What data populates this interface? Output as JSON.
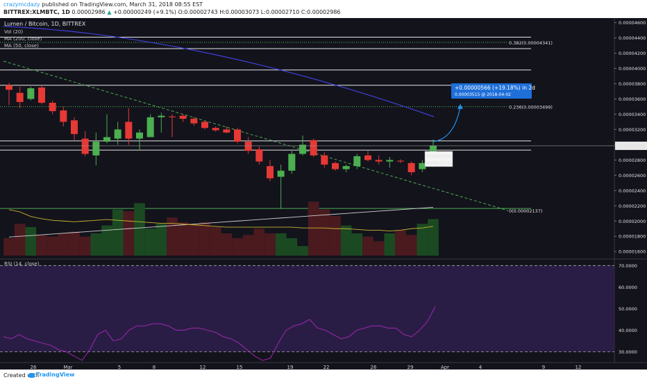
{
  "header": {
    "author": "crazymcdazy",
    "published_text": "published on TradingView.com, March 31, 2018 08:55 EST",
    "symbol": "BITTREX:XLMBTC, 1D",
    "price": "0.00002986",
    "change": "+0.00000249 (+9.1%)",
    "open": "O:0.00002743",
    "high": "H:0.00003073",
    "low": "L:0.00002710",
    "close": "C:0.00002986"
  },
  "legend": {
    "title": "Lumen / Bitcoin, 1D, BITTREX",
    "vol": "Vol (20)",
    "ma200": "MA (200, close)",
    "ma50": "MA (50, close)",
    "rsi": "RSI (14, close)"
  },
  "annotations": {
    "fib_382": "0.382(0.00004341)",
    "fib_236": "0.236(0.00003499)",
    "fib_0": "0(0.00002137)",
    "target_change": "+0.00000566 (+19.18%) in 2d",
    "target_detail": "0.00003515 @ 2018-04-02",
    "current_price_label": "0.00002986",
    "date_tooltip_price": "0.0000295",
    "date_tooltip_date": "2018-03-31"
  },
  "footer": {
    "created_with": "Created with",
    "brand": "TradingView"
  },
  "colors": {
    "background": "#13131c",
    "up": "#4caf50",
    "down": "#e53935",
    "fib": "#4caf50",
    "rsi_line": "#9c27b0",
    "rsi_fill": "#2a1d45",
    "ma200": "#d0d0d0",
    "ma50": "#c9b530",
    "blue_line": "#3f3fd9"
  },
  "chart_data": {
    "type": "candlestick",
    "price_axis": {
      "ticks": [
        "0.00004600",
        "0.00004400",
        "0.00004200",
        "0.00004000",
        "0.00003800",
        "0.00003600",
        "0.00003400",
        "0.00003200",
        "0.00003000",
        "0.00002800",
        "0.00002600",
        "0.00002400",
        "0.00002200",
        "0.00002000",
        "0.00001800",
        "0.00001600"
      ],
      "range": [
        1.52e-05,
        4.66e-05
      ]
    },
    "x_axis": {
      "ticks": [
        "26",
        "Mar",
        "5",
        "8",
        "12",
        "15",
        "19",
        "22",
        "26",
        "29",
        "Apr",
        "4",
        "9",
        "12"
      ]
    },
    "horizontal_levels": [
      4.41e-05,
      4.26e-05,
      3.98e-05,
      3.78e-05,
      3.05e-05,
      2.93e-05,
      2.165e-05
    ],
    "candles": [
      {
        "o": 3.78,
        "h": 3.81,
        "l": 3.52,
        "c": 3.72
      },
      {
        "o": 3.68,
        "h": 3.76,
        "l": 3.48,
        "c": 3.56
      },
      {
        "o": 3.6,
        "h": 3.76,
        "l": 3.58,
        "c": 3.74
      },
      {
        "o": 3.75,
        "h": 3.78,
        "l": 3.53,
        "c": 3.55
      },
      {
        "o": 3.55,
        "h": 3.58,
        "l": 3.4,
        "c": 3.44
      },
      {
        "o": 3.45,
        "h": 3.5,
        "l": 3.24,
        "c": 3.3
      },
      {
        "o": 3.32,
        "h": 3.36,
        "l": 3.06,
        "c": 3.14
      },
      {
        "o": 3.08,
        "h": 3.18,
        "l": 2.85,
        "c": 2.88
      },
      {
        "o": 2.86,
        "h": 3.16,
        "l": 2.73,
        "c": 3.04
      },
      {
        "o": 3.04,
        "h": 3.4,
        "l": 3.02,
        "c": 3.1
      },
      {
        "o": 3.08,
        "h": 3.3,
        "l": 3.0,
        "c": 3.2
      },
      {
        "o": 3.3,
        "h": 3.48,
        "l": 3.0,
        "c": 3.08
      },
      {
        "o": 3.08,
        "h": 3.2,
        "l": 2.92,
        "c": 3.16
      },
      {
        "o": 3.1,
        "h": 3.4,
        "l": 3.1,
        "c": 3.36
      },
      {
        "o": 3.36,
        "h": 3.42,
        "l": 3.16,
        "c": 3.38
      },
      {
        "o": 3.37,
        "h": 3.4,
        "l": 3.1,
        "c": 3.36
      },
      {
        "o": 3.38,
        "h": 3.4,
        "l": 3.3,
        "c": 3.34
      },
      {
        "o": 3.34,
        "h": 3.36,
        "l": 3.25,
        "c": 3.28
      },
      {
        "o": 3.3,
        "h": 3.32,
        "l": 3.2,
        "c": 3.22
      },
      {
        "o": 3.22,
        "h": 3.24,
        "l": 3.17,
        "c": 3.19
      },
      {
        "o": 3.2,
        "h": 3.24,
        "l": 3.15,
        "c": 3.16
      },
      {
        "o": 3.2,
        "h": 3.22,
        "l": 3.02,
        "c": 3.04
      },
      {
        "o": 3.04,
        "h": 3.1,
        "l": 2.88,
        "c": 2.92
      },
      {
        "o": 2.94,
        "h": 2.98,
        "l": 2.74,
        "c": 2.78
      },
      {
        "o": 2.72,
        "h": 2.8,
        "l": 2.52,
        "c": 2.56
      },
      {
        "o": 2.58,
        "h": 2.74,
        "l": 2.16,
        "c": 2.66
      },
      {
        "o": 2.66,
        "h": 2.92,
        "l": 2.62,
        "c": 2.88
      },
      {
        "o": 2.88,
        "h": 3.12,
        "l": 2.86,
        "c": 3.0
      },
      {
        "o": 3.06,
        "h": 3.08,
        "l": 2.84,
        "c": 2.86
      },
      {
        "o": 2.86,
        "h": 2.9,
        "l": 2.7,
        "c": 2.74
      },
      {
        "o": 2.76,
        "h": 2.78,
        "l": 2.66,
        "c": 2.68
      },
      {
        "o": 2.68,
        "h": 2.74,
        "l": 2.64,
        "c": 2.72
      },
      {
        "o": 2.72,
        "h": 2.88,
        "l": 2.68,
        "c": 2.85
      },
      {
        "o": 2.86,
        "h": 2.92,
        "l": 2.78,
        "c": 2.8
      },
      {
        "o": 2.8,
        "h": 2.86,
        "l": 2.74,
        "c": 2.78
      },
      {
        "o": 2.78,
        "h": 2.84,
        "l": 2.7,
        "c": 2.8
      },
      {
        "o": 2.79,
        "h": 2.81,
        "l": 2.76,
        "c": 2.78
      },
      {
        "o": 2.76,
        "h": 2.78,
        "l": 2.6,
        "c": 2.64
      },
      {
        "o": 2.68,
        "h": 2.8,
        "l": 2.64,
        "c": 2.76
      },
      {
        "o": 2.74,
        "h": 3.07,
        "l": 2.71,
        "c": 2.99
      }
    ],
    "volume": [
      22,
      40,
      36,
      26,
      24,
      28,
      30,
      24,
      28,
      38,
      58,
      56,
      66,
      34,
      40,
      48,
      42,
      40,
      42,
      36,
      28,
      22,
      26,
      34,
      28,
      28,
      22,
      12,
      68,
      58,
      50,
      38,
      28,
      24,
      18,
      28,
      32,
      26,
      40,
      46
    ],
    "ma50": [
      2.15,
      2.12,
      2.06,
      2.03,
      2.01,
      2.0,
      1.99,
      2.0,
      2.01,
      2.02,
      2.01,
      2.0,
      1.99,
      1.98,
      1.97,
      1.97,
      1.96,
      1.95,
      1.94,
      1.93,
      1.92,
      1.92,
      1.92,
      1.92,
      1.92,
      1.92,
      1.92,
      1.91,
      1.91,
      1.91,
      1.9,
      1.9,
      1.89,
      1.88,
      1.88,
      1.87,
      1.88,
      1.9,
      1.91,
      1.93
    ],
    "ma200": [
      1.79,
      1.8,
      1.81,
      1.82,
      1.83,
      1.84,
      1.85,
      1.86,
      1.87,
      1.88,
      1.89,
      1.9,
      1.91,
      1.92,
      1.93,
      1.94,
      1.95,
      1.96,
      1.97,
      1.98,
      1.99,
      2.0,
      2.01,
      2.02,
      2.03,
      2.04,
      2.05,
      2.06,
      2.07,
      2.08,
      2.09,
      2.1,
      2.11,
      2.12,
      2.13,
      2.14,
      2.15,
      2.16,
      2.17,
      2.18
    ],
    "rsi_axis": {
      "ticks": [
        "70.0000",
        "60.0000",
        "50.0000",
        "40.0000",
        "30.0000"
      ],
      "range": [
        25,
        73
      ]
    },
    "rsi": [
      37,
      36,
      38,
      36,
      35,
      34,
      33,
      31,
      30,
      28,
      26,
      31,
      38,
      40,
      35,
      36,
      40,
      42,
      42,
      43,
      43,
      42,
      40,
      40,
      41,
      41,
      40,
      39,
      37,
      36,
      34,
      31,
      28,
      26,
      27,
      34,
      40,
      42,
      43,
      45,
      41,
      40,
      38,
      36,
      37,
      40,
      41,
      42,
      42,
      41,
      41,
      38,
      37,
      40,
      44,
      51
    ]
  }
}
